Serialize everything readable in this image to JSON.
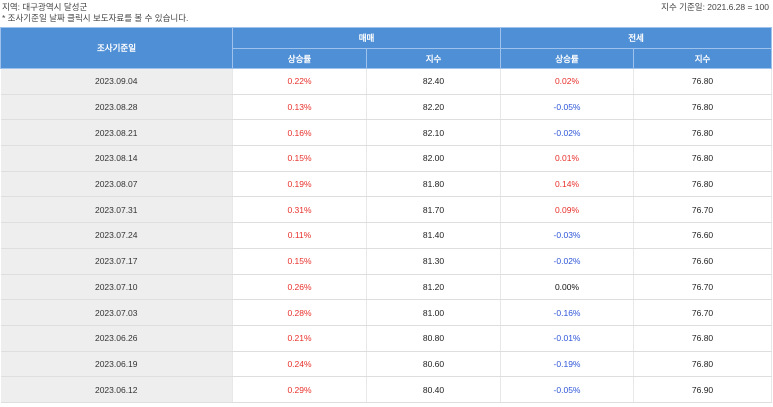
{
  "header": {
    "region": "지역: 대구광역시 달성군",
    "note": "* 조사기준일 날짜 클릭시 보도자료를 볼 수 있습니다.",
    "base_index": "지수 기준일: 2021.6.28 = 100"
  },
  "table": {
    "col_date": "조사기준일",
    "group_sale": "매매",
    "group_jeonse": "전세",
    "sub_rate": "상승률",
    "sub_index": "지수",
    "rows": [
      {
        "date": "2023.09.04",
        "sale_rate": "0.22%",
        "sale_index": "82.40",
        "jeonse_rate": "0.02%",
        "jeonse_index": "76.80"
      },
      {
        "date": "2023.08.28",
        "sale_rate": "0.13%",
        "sale_index": "82.20",
        "jeonse_rate": "-0.05%",
        "jeonse_index": "76.80"
      },
      {
        "date": "2023.08.21",
        "sale_rate": "0.16%",
        "sale_index": "82.10",
        "jeonse_rate": "-0.02%",
        "jeonse_index": "76.80"
      },
      {
        "date": "2023.08.14",
        "sale_rate": "0.15%",
        "sale_index": "82.00",
        "jeonse_rate": "0.01%",
        "jeonse_index": "76.80"
      },
      {
        "date": "2023.08.07",
        "sale_rate": "0.19%",
        "sale_index": "81.80",
        "jeonse_rate": "0.14%",
        "jeonse_index": "76.80"
      },
      {
        "date": "2023.07.31",
        "sale_rate": "0.31%",
        "sale_index": "81.70",
        "jeonse_rate": "0.09%",
        "jeonse_index": "76.70"
      },
      {
        "date": "2023.07.24",
        "sale_rate": "0.11%",
        "sale_index": "81.40",
        "jeonse_rate": "-0.03%",
        "jeonse_index": "76.60"
      },
      {
        "date": "2023.07.17",
        "sale_rate": "0.15%",
        "sale_index": "81.30",
        "jeonse_rate": "-0.02%",
        "jeonse_index": "76.60"
      },
      {
        "date": "2023.07.10",
        "sale_rate": "0.26%",
        "sale_index": "81.20",
        "jeonse_rate": "0.00%",
        "jeonse_index": "76.70"
      },
      {
        "date": "2023.07.03",
        "sale_rate": "0.28%",
        "sale_index": "81.00",
        "jeonse_rate": "-0.16%",
        "jeonse_index": "76.70"
      },
      {
        "date": "2023.06.26",
        "sale_rate": "0.21%",
        "sale_index": "80.80",
        "jeonse_rate": "-0.01%",
        "jeonse_index": "76.80"
      },
      {
        "date": "2023.06.19",
        "sale_rate": "0.24%",
        "sale_index": "80.60",
        "jeonse_rate": "-0.19%",
        "jeonse_index": "76.80"
      },
      {
        "date": "2023.06.12",
        "sale_rate": "0.29%",
        "sale_index": "80.40",
        "jeonse_rate": "-0.05%",
        "jeonse_index": "76.90"
      }
    ]
  },
  "colors": {
    "header_bg": "#4f8fd6",
    "up": "#e8302b",
    "down": "#2e56d8",
    "date_bg": "#eeeeee"
  }
}
